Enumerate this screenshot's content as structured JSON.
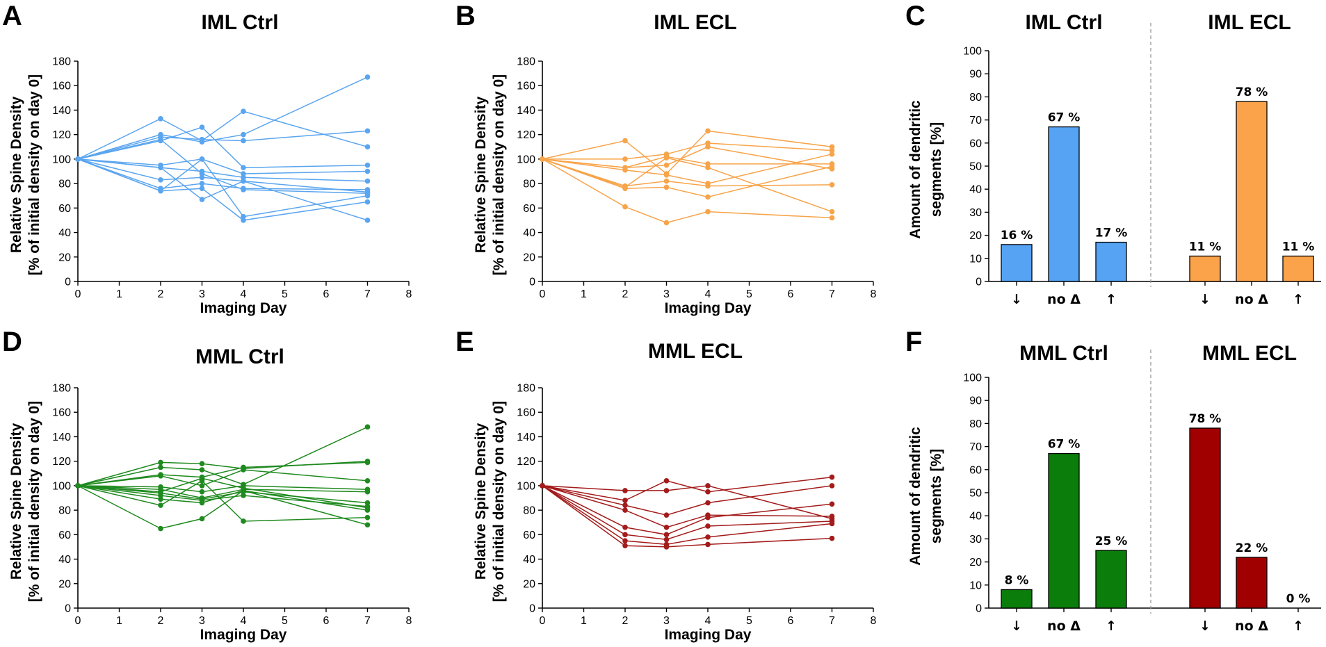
{
  "figure": {
    "caption": ""
  },
  "chart_data": [
    {
      "id": "A",
      "type": "line",
      "letter": "A",
      "title": "IML Ctrl",
      "xlabel": "Imaging Day",
      "ylabel_lines": [
        "Relative Spine Density",
        "[% of initial density on day 0]"
      ],
      "xlim": [
        0,
        8
      ],
      "ylim": [
        0,
        180
      ],
      "xticks": [
        0,
        1,
        2,
        3,
        4,
        5,
        6,
        7,
        8
      ],
      "yticks": [
        0,
        20,
        40,
        60,
        80,
        100,
        120,
        140,
        160,
        180
      ],
      "color": "#5aa5ef",
      "x": [
        0,
        2,
        3,
        4,
        7
      ],
      "series": [
        {
          "name": "segment 1",
          "values": [
            100,
            133,
            115,
            139,
            110
          ]
        },
        {
          "name": "segment 2",
          "values": [
            100,
            120,
            114,
            120,
            167
          ]
        },
        {
          "name": "segment 3",
          "values": [
            100,
            118,
            116,
            115,
            123
          ]
        },
        {
          "name": "segment 4",
          "values": [
            100,
            115,
            126,
            93,
            95
          ]
        },
        {
          "name": "segment 5",
          "values": [
            100,
            95,
            100,
            88,
            90
          ]
        },
        {
          "name": "segment 6",
          "values": [
            100,
            93,
            90,
            85,
            82
          ]
        },
        {
          "name": "segment 7",
          "values": [
            100,
            83,
            85,
            82,
            73
          ]
        },
        {
          "name": "segment 8",
          "values": [
            100,
            76,
            80,
            76,
            75
          ]
        },
        {
          "name": "segment 9",
          "values": [
            100,
            74,
            100,
            53,
            70
          ]
        },
        {
          "name": "segment 10",
          "values": [
            100,
            74,
            76,
            50,
            65
          ]
        },
        {
          "name": "segment 11",
          "values": [
            100,
            116,
            88,
            75,
            72
          ]
        },
        {
          "name": "segment 12",
          "values": [
            100,
            93,
            67,
            82,
            50
          ]
        }
      ]
    },
    {
      "id": "B",
      "type": "line",
      "letter": "B",
      "title": "IML ECL",
      "xlabel": "Imaging Day",
      "ylabel_lines": [
        "Relative Spine Density",
        "[% of initial density on day 0]"
      ],
      "xlim": [
        0,
        8
      ],
      "ylim": [
        0,
        180
      ],
      "xticks": [
        0,
        1,
        2,
        3,
        4,
        5,
        6,
        7,
        8
      ],
      "yticks": [
        0,
        20,
        40,
        60,
        80,
        100,
        120,
        140,
        160,
        180
      ],
      "color": "#f7a44a",
      "x": [
        0,
        2,
        3,
        4,
        7
      ],
      "series": [
        {
          "name": "segment 1",
          "values": [
            100,
            115,
            88,
            123,
            110
          ]
        },
        {
          "name": "segment 2",
          "values": [
            100,
            100,
            104,
            113,
            107
          ]
        },
        {
          "name": "segment 3",
          "values": [
            100,
            93,
            102,
            96,
            96
          ]
        },
        {
          "name": "segment 4",
          "values": [
            100,
            93,
            95,
            110,
            92
          ]
        },
        {
          "name": "segment 5",
          "values": [
            100,
            91,
            87,
            80,
            104
          ]
        },
        {
          "name": "segment 6",
          "values": [
            100,
            78,
            82,
            78,
            79
          ]
        },
        {
          "name": "segment 7",
          "values": [
            100,
            76,
            77,
            69,
            94
          ]
        },
        {
          "name": "segment 8",
          "values": [
            100,
            61,
            48,
            57,
            52
          ]
        },
        {
          "name": "segment 9",
          "values": [
            100,
            77,
            101,
            93,
            57
          ]
        }
      ]
    },
    {
      "id": "C",
      "type": "bar",
      "letter": "C",
      "groups": [
        {
          "title": "IML Ctrl",
          "color": "#55a3f2",
          "values": [
            16,
            67,
            17
          ],
          "labels": [
            "16 %",
            "67 %",
            "17 %"
          ]
        },
        {
          "title": "IML ECL",
          "color": "#fba34a",
          "values": [
            11,
            78,
            11
          ],
          "labels": [
            "11 %",
            "78 %",
            "11 %"
          ]
        }
      ],
      "categories": [
        "↓",
        "no Δ",
        "↑"
      ],
      "ylabel_lines": [
        "Amount of dendritic",
        "segments [%]"
      ],
      "ylim": [
        0,
        100
      ],
      "yticks": [
        0,
        10,
        20,
        30,
        40,
        50,
        60,
        70,
        80,
        90,
        100
      ]
    },
    {
      "id": "D",
      "type": "line",
      "letter": "D",
      "title": "MML Ctrl",
      "xlabel": "Imaging Day",
      "ylabel_lines": [
        "Relative Spine Density",
        "[% of initial density on day 0]"
      ],
      "xlim": [
        0,
        8
      ],
      "ylim": [
        0,
        180
      ],
      "xticks": [
        0,
        1,
        2,
        3,
        4,
        5,
        6,
        7,
        8
      ],
      "yticks": [
        0,
        20,
        40,
        60,
        80,
        100,
        120,
        140,
        160,
        180
      ],
      "color": "#1f8a1f",
      "x": [
        0,
        2,
        3,
        4,
        7
      ],
      "series": [
        {
          "name": "segment 1",
          "values": [
            100,
            119,
            118,
            114,
            120
          ]
        },
        {
          "name": "segment 2",
          "values": [
            100,
            115,
            113,
            101,
            148
          ]
        },
        {
          "name": "segment 3",
          "values": [
            100,
            109,
            107,
            115,
            119
          ]
        },
        {
          "name": "segment 4",
          "values": [
            100,
            108,
            100,
            113,
            104
          ]
        },
        {
          "name": "segment 5",
          "values": [
            100,
            99,
            95,
            100,
            97
          ]
        },
        {
          "name": "segment 6",
          "values": [
            100,
            97,
            90,
            97,
            95
          ]
        },
        {
          "name": "segment 7",
          "values": [
            100,
            94,
            89,
            95,
            86
          ]
        },
        {
          "name": "segment 8",
          "values": [
            100,
            92,
            88,
            92,
            83
          ]
        },
        {
          "name": "segment 9",
          "values": [
            100,
            89,
            86,
            96,
            80
          ]
        },
        {
          "name": "segment 10",
          "values": [
            100,
            84,
            104,
            71,
            74
          ]
        },
        {
          "name": "segment 11",
          "values": [
            100,
            65,
            73,
            96,
            68
          ]
        },
        {
          "name": "segment 12",
          "values": [
            100,
            95,
            106,
            98,
            82
          ]
        }
      ]
    },
    {
      "id": "E",
      "type": "line",
      "letter": "E",
      "title": "MML ECL",
      "xlabel": "Imaging Day",
      "ylabel_lines": [
        "Relative Spine Density",
        "[% of initial density on day 0]"
      ],
      "xlim": [
        0,
        8
      ],
      "ylim": [
        0,
        180
      ],
      "xticks": [
        0,
        1,
        2,
        3,
        4,
        5,
        6,
        7,
        8
      ],
      "yticks": [
        0,
        20,
        40,
        60,
        80,
        100,
        120,
        140,
        160,
        180
      ],
      "color": "#a31b1b",
      "x": [
        0,
        2,
        3,
        4,
        7
      ],
      "series": [
        {
          "name": "segment 1",
          "values": [
            100,
            96,
            96,
            100,
            73
          ]
        },
        {
          "name": "segment 2",
          "values": [
            100,
            88,
            104,
            95,
            107
          ]
        },
        {
          "name": "segment 3",
          "values": [
            100,
            84,
            76,
            86,
            100
          ]
        },
        {
          "name": "segment 4",
          "values": [
            100,
            80,
            66,
            76,
            75
          ]
        },
        {
          "name": "segment 5",
          "values": [
            100,
            66,
            60,
            74,
            85
          ]
        },
        {
          "name": "segment 6",
          "values": [
            100,
            60,
            56,
            67,
            71
          ]
        },
        {
          "name": "segment 7",
          "values": [
            100,
            55,
            52,
            58,
            69
          ]
        },
        {
          "name": "segment 8",
          "values": [
            100,
            51,
            50,
            52,
            57
          ]
        }
      ]
    },
    {
      "id": "F",
      "type": "bar",
      "letter": "F",
      "groups": [
        {
          "title": "MML Ctrl",
          "color": "#0b7d0b",
          "values": [
            8,
            67,
            25
          ],
          "labels": [
            "8 %",
            "67 %",
            "25 %"
          ]
        },
        {
          "title": "MML ECL",
          "color": "#a00000",
          "values": [
            78,
            22,
            0
          ],
          "labels": [
            "78 %",
            "22 %",
            "0 %"
          ]
        }
      ],
      "categories": [
        "↓",
        "no Δ",
        "↑"
      ],
      "ylabel_lines": [
        "Amount of dendritic",
        "segments [%]"
      ],
      "ylim": [
        0,
        100
      ],
      "yticks": [
        0,
        10,
        20,
        30,
        40,
        50,
        60,
        70,
        80,
        90,
        100
      ]
    }
  ]
}
